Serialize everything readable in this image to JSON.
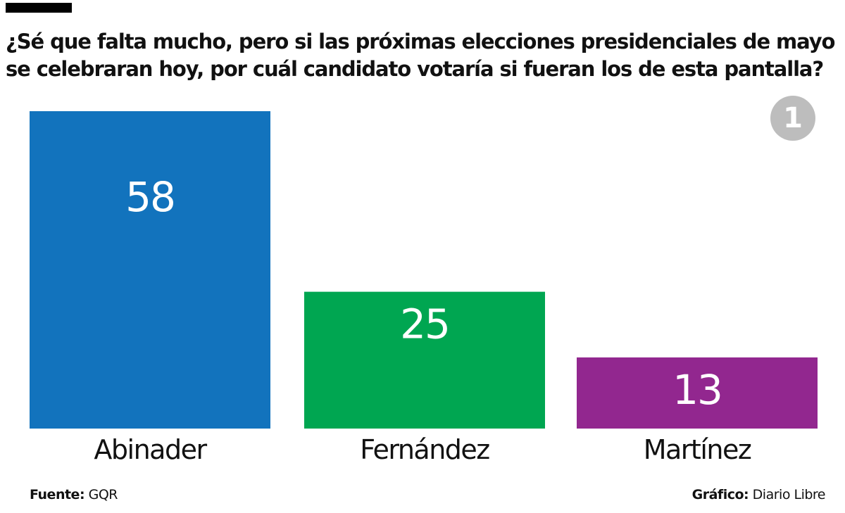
{
  "header": {
    "title": "¿Sé que falta mucho, pero si las próximas elecciones presidenciales de mayo se celebraran hoy, por cuál candidato votaría si fueran los de esta pantalla?",
    "badge": "1"
  },
  "chart_data": {
    "type": "bar",
    "categories": [
      "Abinader",
      "Fernández",
      "Martínez"
    ],
    "values": [
      58,
      25,
      13
    ],
    "colors": [
      "#1273bd",
      "#00a651",
      "#92278f"
    ],
    "ylim": [
      0,
      58
    ],
    "grid": false,
    "legend": "none",
    "value_labels": "inside-bar"
  },
  "footer": {
    "source_label": "Fuente:",
    "source_value": "GQR",
    "credit_label": "Gráfico:",
    "credit_value": "Diario Libre"
  }
}
